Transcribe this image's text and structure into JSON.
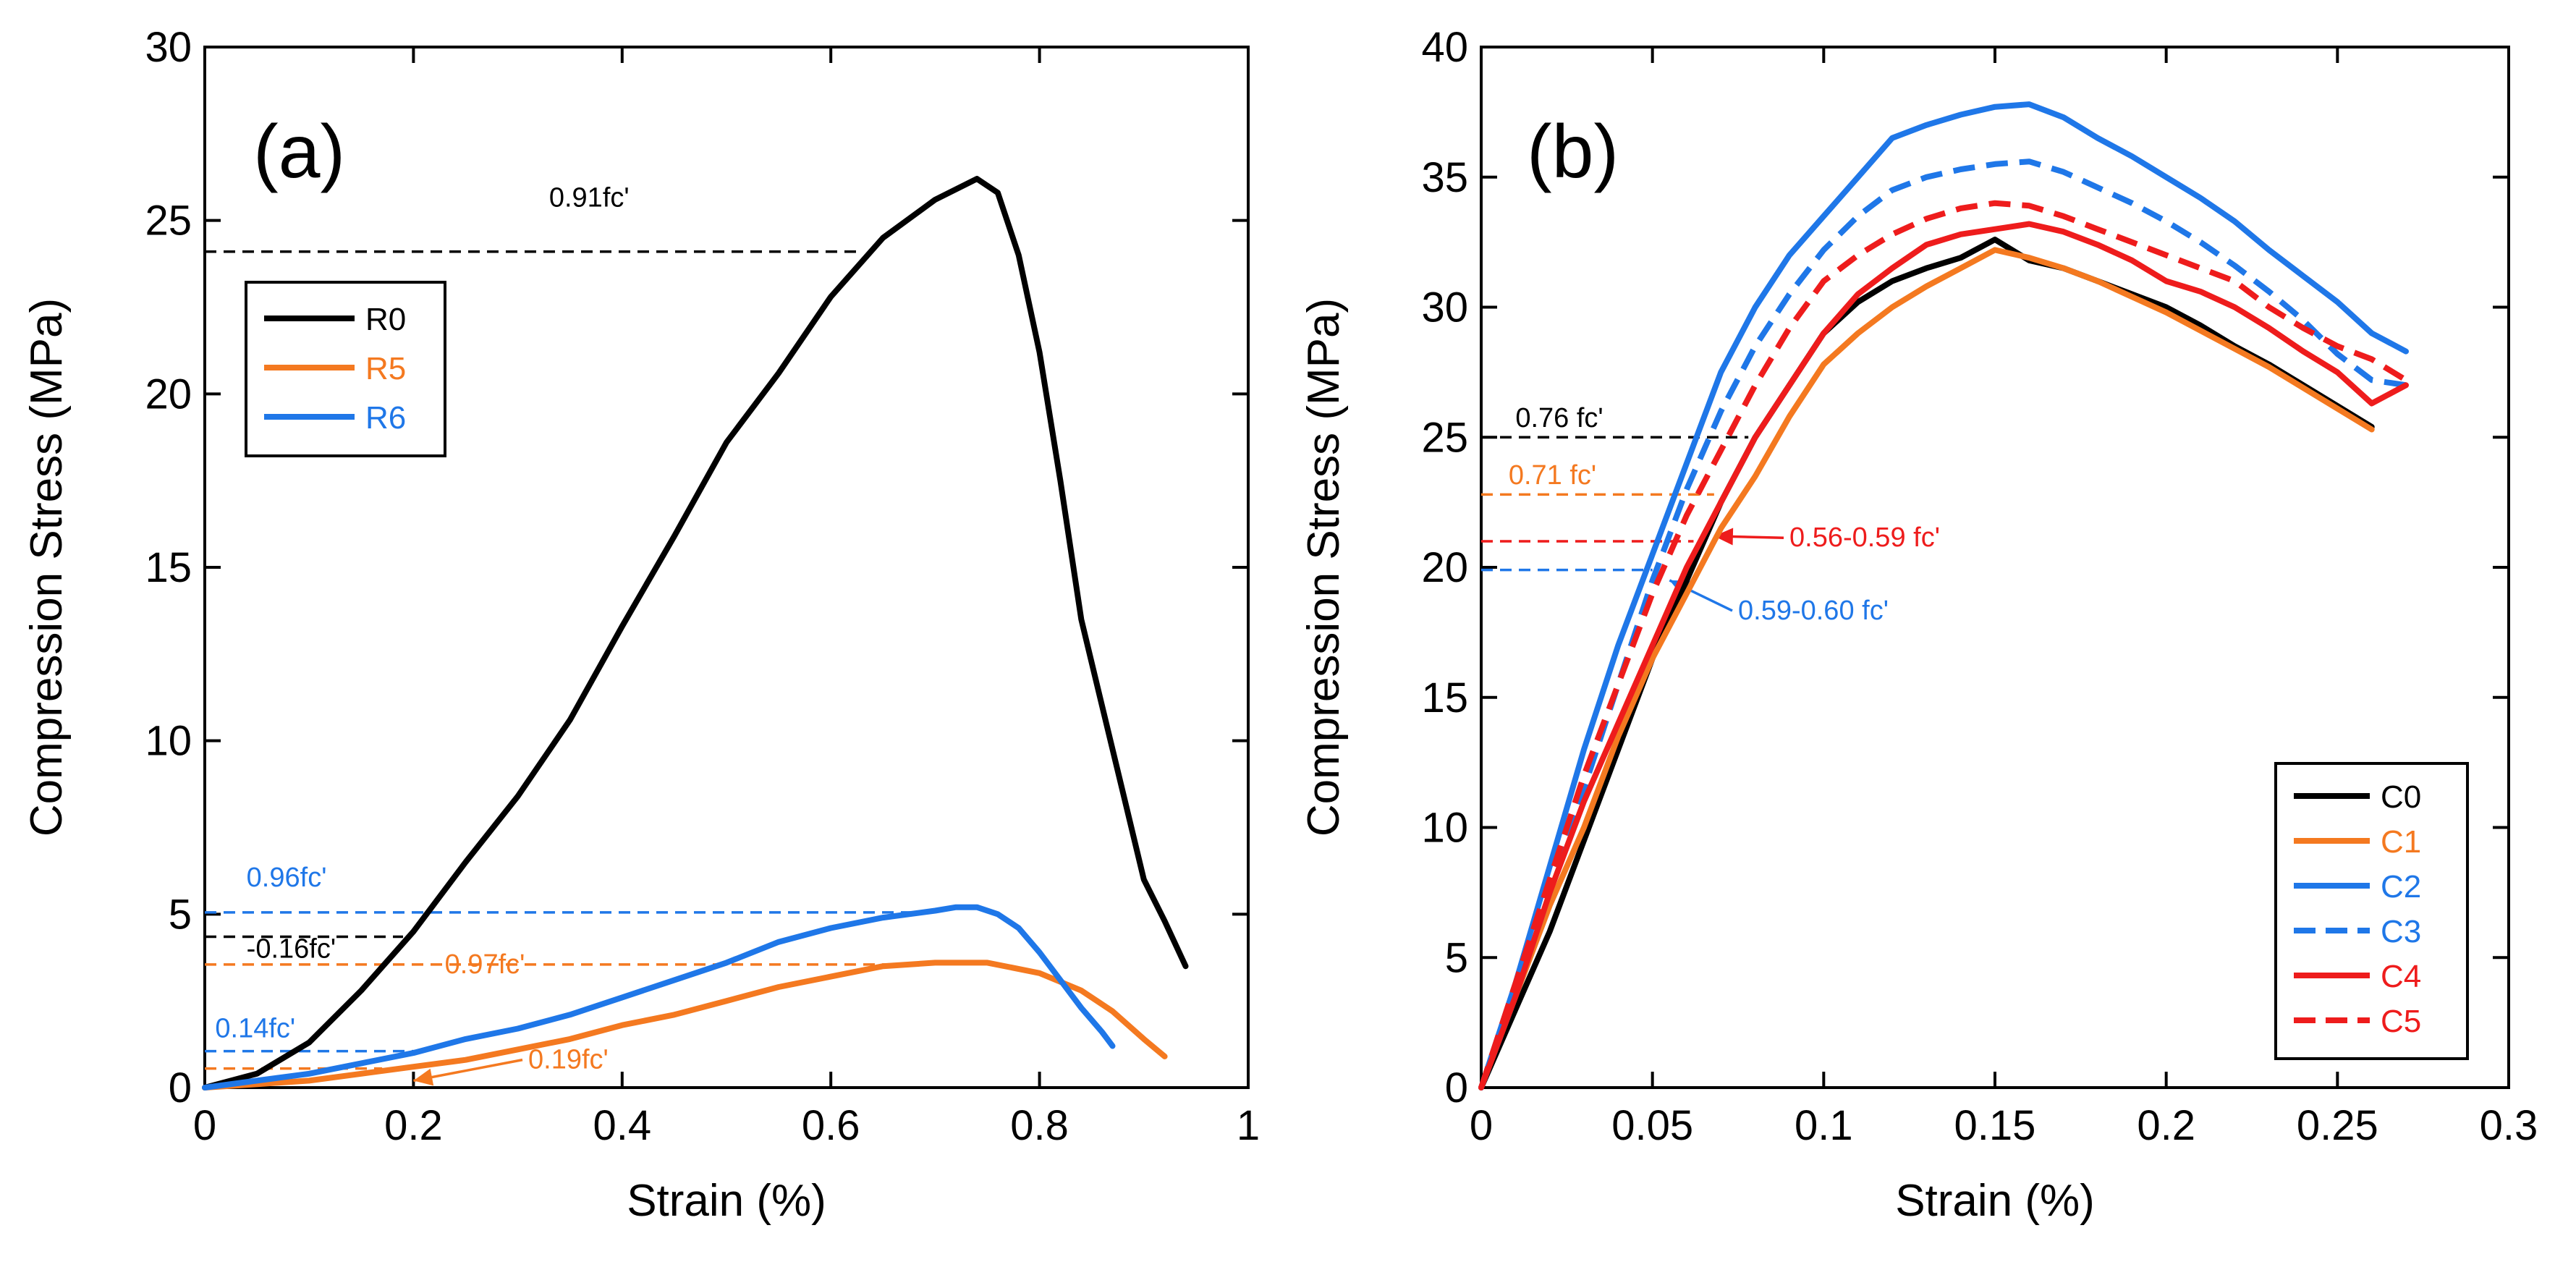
{
  "chart_data": [
    {
      "type": "line",
      "panel_label": "(a)",
      "xlabel": "Strain (%)",
      "ylabel": "Compression Stress (MPa)",
      "xlim": [
        0,
        1
      ],
      "ylim": [
        0,
        30
      ],
      "xticks": [
        0,
        0.2,
        0.4,
        0.6,
        0.8,
        1
      ],
      "xtick_labels": [
        "0",
        "0.2",
        "0.4",
        "0.6",
        "0.8",
        "1"
      ],
      "yticks": [
        0,
        5,
        10,
        15,
        20,
        25,
        30
      ],
      "ytick_labels": [
        "0",
        "5",
        "10",
        "15",
        "20",
        "25",
        "30"
      ],
      "legend_position": "upper-left",
      "series": [
        {
          "name": "R0",
          "color": "#000000",
          "style": "solid",
          "legend_color": "#000000",
          "x": [
            0,
            0.05,
            0.1,
            0.15,
            0.2,
            0.25,
            0.3,
            0.35,
            0.4,
            0.45,
            0.5,
            0.55,
            0.6,
            0.65,
            0.7,
            0.74,
            0.76,
            0.78,
            0.8,
            0.82,
            0.84,
            0.86,
            0.88,
            0.9,
            0.92,
            0.94
          ],
          "y": [
            0,
            0.4,
            1.3,
            2.8,
            4.5,
            6.5,
            8.4,
            10.6,
            13.3,
            15.9,
            18.6,
            20.6,
            22.8,
            24.5,
            25.6,
            26.2,
            25.8,
            24.0,
            21.2,
            17.5,
            13.5,
            11.0,
            8.5,
            6.0,
            4.8,
            3.5
          ]
        },
        {
          "name": "R5",
          "color": "#f47920",
          "style": "solid",
          "legend_color": "#f47920",
          "x": [
            0,
            0.05,
            0.1,
            0.15,
            0.2,
            0.25,
            0.3,
            0.35,
            0.4,
            0.45,
            0.5,
            0.55,
            0.6,
            0.65,
            0.7,
            0.75,
            0.8,
            0.84,
            0.87,
            0.9,
            0.92
          ],
          "y": [
            0,
            0.1,
            0.2,
            0.4,
            0.6,
            0.8,
            1.1,
            1.4,
            1.8,
            2.1,
            2.5,
            2.9,
            3.2,
            3.5,
            3.6,
            3.6,
            3.3,
            2.8,
            2.2,
            1.4,
            0.9
          ]
        },
        {
          "name": "R6",
          "color": "#1f77e8",
          "style": "solid",
          "legend_color": "#1f77e8",
          "x": [
            0,
            0.05,
            0.1,
            0.15,
            0.2,
            0.25,
            0.3,
            0.35,
            0.4,
            0.45,
            0.5,
            0.55,
            0.6,
            0.65,
            0.7,
            0.72,
            0.74,
            0.76,
            0.78,
            0.8,
            0.82,
            0.84,
            0.86,
            0.87
          ],
          "y": [
            0,
            0.2,
            0.4,
            0.7,
            1.0,
            1.4,
            1.7,
            2.1,
            2.6,
            3.1,
            3.6,
            4.2,
            4.6,
            4.9,
            5.1,
            5.2,
            5.2,
            5.0,
            4.6,
            3.9,
            3.1,
            2.3,
            1.6,
            1.2
          ]
        }
      ],
      "reference_lines": [
        {
          "y": 24.1,
          "x_end": 0.63,
          "color": "#000000",
          "label": "0.91fc'",
          "label_x": 0.33,
          "label_y": 25.4
        },
        {
          "y": 5.05,
          "x_end": 0.7,
          "color": "#1f77e8",
          "label": "0.96fc'",
          "label_x": 0.04,
          "label_y": 5.8
        },
        {
          "y": 4.35,
          "x_end": 0.19,
          "color": "#000000",
          "label": "-0.16fc'",
          "label_x": 0.04,
          "label_y": 3.75
        },
        {
          "y": 3.55,
          "x_end": 0.68,
          "color": "#f47920",
          "label": "0.97fc'",
          "label_x": 0.23,
          "label_y": 3.3
        },
        {
          "y": 1.05,
          "x_end": 0.21,
          "color": "#1f77e8",
          "label": "0.14fc'",
          "label_x": 0.01,
          "label_y": 1.45
        },
        {
          "y": 0.55,
          "x_end": 0.17,
          "color": "#f47920",
          "label": "0.19fc'",
          "label_x": 0.31,
          "label_y": 0.55,
          "arrow_to": [
            0.2,
            0.2
          ]
        }
      ]
    },
    {
      "type": "line",
      "panel_label": "(b)",
      "xlabel": "Strain (%)",
      "ylabel": "Compression Stress (MPa)",
      "xlim": [
        0,
        0.3
      ],
      "ylim": [
        0,
        40
      ],
      "xticks": [
        0,
        0.05,
        0.1,
        0.15,
        0.2,
        0.25,
        0.3
      ],
      "xtick_labels": [
        "0",
        "0.05",
        "0.1",
        "0.15",
        "0.2",
        "0.25",
        "0.3"
      ],
      "yticks": [
        0,
        5,
        10,
        15,
        20,
        25,
        30,
        35,
        40
      ],
      "ytick_labels": [
        "0",
        "5",
        "10",
        "15",
        "20",
        "25",
        "30",
        "35",
        "40"
      ],
      "legend_position": "lower-right",
      "series": [
        {
          "name": "C0",
          "color": "#000000",
          "style": "solid",
          "legend_color": "#000000",
          "x": [
            0,
            0.01,
            0.02,
            0.03,
            0.04,
            0.05,
            0.06,
            0.07,
            0.08,
            0.09,
            0.1,
            0.11,
            0.12,
            0.13,
            0.14,
            0.15,
            0.16,
            0.17,
            0.18,
            0.19,
            0.2,
            0.21,
            0.22,
            0.23,
            0.24,
            0.25,
            0.26
          ],
          "y": [
            0,
            3,
            6,
            9.5,
            13,
            16.5,
            19.5,
            22.5,
            25,
            27,
            29,
            30.2,
            31,
            31.5,
            31.9,
            32.6,
            31.8,
            31.5,
            31.0,
            30.5,
            30.0,
            29.3,
            28.5,
            27.8,
            27.0,
            26.2,
            25.4
          ]
        },
        {
          "name": "C1",
          "color": "#f47920",
          "style": "solid",
          "legend_color": "#f47920",
          "x": [
            0,
            0.01,
            0.02,
            0.03,
            0.04,
            0.05,
            0.06,
            0.07,
            0.08,
            0.09,
            0.1,
            0.11,
            0.12,
            0.13,
            0.14,
            0.15,
            0.16,
            0.17,
            0.18,
            0.19,
            0.2,
            0.21,
            0.22,
            0.23,
            0.24,
            0.25,
            0.26
          ],
          "y": [
            0,
            3.5,
            7,
            10,
            13.5,
            16.5,
            19,
            21.5,
            23.5,
            25.8,
            27.8,
            29,
            30,
            30.8,
            31.5,
            32.2,
            31.9,
            31.5,
            31.0,
            30.4,
            29.8,
            29.1,
            28.4,
            27.7,
            26.9,
            26.1,
            25.3
          ]
        },
        {
          "name": "C2",
          "color": "#1f77e8",
          "style": "solid",
          "legend_color": "#1f77e8",
          "x": [
            0,
            0.01,
            0.02,
            0.03,
            0.04,
            0.05,
            0.06,
            0.07,
            0.08,
            0.09,
            0.1,
            0.11,
            0.12,
            0.13,
            0.14,
            0.15,
            0.16,
            0.17,
            0.18,
            0.19,
            0.2,
            0.21,
            0.22,
            0.23,
            0.24,
            0.25,
            0.26,
            0.27
          ],
          "y": [
            0,
            4,
            8.5,
            13,
            17,
            20.5,
            24,
            27.5,
            30,
            32,
            33.5,
            35,
            36.5,
            37,
            37.4,
            37.7,
            37.8,
            37.3,
            36.5,
            35.8,
            35.0,
            34.2,
            33.3,
            32.2,
            31.2,
            30.2,
            29.0,
            28.3
          ]
        },
        {
          "name": "C3",
          "color": "#1f77e8",
          "style": "dashed",
          "legend_color": "#1f77e8",
          "x": [
            0,
            0.01,
            0.02,
            0.03,
            0.04,
            0.05,
            0.06,
            0.07,
            0.08,
            0.09,
            0.1,
            0.11,
            0.12,
            0.13,
            0.14,
            0.15,
            0.16,
            0.17,
            0.18,
            0.19,
            0.2,
            0.21,
            0.22,
            0.23,
            0.24,
            0.25,
            0.26,
            0.27
          ],
          "y": [
            0,
            3.5,
            7.5,
            11.5,
            15.5,
            19.5,
            23,
            26,
            28.5,
            30.5,
            32.2,
            33.5,
            34.5,
            35,
            35.3,
            35.5,
            35.6,
            35.2,
            34.6,
            34.0,
            33.3,
            32.5,
            31.6,
            30.6,
            29.5,
            28.2,
            27.2,
            27.0
          ]
        },
        {
          "name": "C4",
          "color": "#ee1c1c",
          "style": "solid",
          "legend_color": "#ee1c1c",
          "x": [
            0,
            0.01,
            0.02,
            0.03,
            0.04,
            0.05,
            0.06,
            0.07,
            0.08,
            0.09,
            0.1,
            0.11,
            0.12,
            0.13,
            0.14,
            0.15,
            0.16,
            0.17,
            0.18,
            0.19,
            0.2,
            0.21,
            0.22,
            0.23,
            0.24,
            0.25,
            0.26,
            0.27
          ],
          "y": [
            0,
            3.5,
            7.5,
            11,
            14,
            17,
            20,
            22.5,
            25,
            27,
            29,
            30.5,
            31.5,
            32.4,
            32.8,
            33.0,
            33.2,
            32.9,
            32.4,
            31.8,
            31.0,
            30.6,
            30.0,
            29.2,
            28.3,
            27.5,
            26.3,
            27.0
          ]
        },
        {
          "name": "C5",
          "color": "#ee1c1c",
          "style": "dashed",
          "legend_color": "#ee1c1c",
          "x": [
            0,
            0.01,
            0.02,
            0.03,
            0.04,
            0.05,
            0.06,
            0.07,
            0.08,
            0.09,
            0.1,
            0.11,
            0.12,
            0.13,
            0.14,
            0.15,
            0.16,
            0.17,
            0.18,
            0.19,
            0.2,
            0.21,
            0.22,
            0.23,
            0.24,
            0.25,
            0.26,
            0.27
          ],
          "y": [
            0,
            4,
            8,
            12,
            15.5,
            19,
            22,
            24.5,
            27,
            29.2,
            31,
            32,
            32.8,
            33.4,
            33.8,
            34.0,
            33.9,
            33.5,
            33.0,
            32.5,
            32.0,
            31.5,
            31.0,
            30.0,
            29.2,
            28.5,
            28.0,
            27.2
          ]
        }
      ],
      "reference_lines": [
        {
          "y": 25.0,
          "x_end": 0.078,
          "color": "#000000",
          "label": "0.76 fc'",
          "label_x": 0.01,
          "label_y": 25.4
        },
        {
          "y": 22.8,
          "x_end": 0.068,
          "color": "#f47920",
          "label": "0.71 fc'",
          "label_x": 0.008,
          "label_y": 23.2
        },
        {
          "y": 21.0,
          "x_end": 0.062,
          "color": "#ee1c1c",
          "label": "0.56-0.59 fc'",
          "label_x": 0.09,
          "label_y": 20.8,
          "arrow_to": [
            0.068,
            21.2
          ]
        },
        {
          "y": 19.9,
          "x_end": 0.05,
          "color": "#1f77e8",
          "label": "0.59-0.60 fc'",
          "label_x": 0.075,
          "label_y": 18.0,
          "arrow_to": [
            0.055,
            19.5
          ]
        }
      ]
    }
  ]
}
